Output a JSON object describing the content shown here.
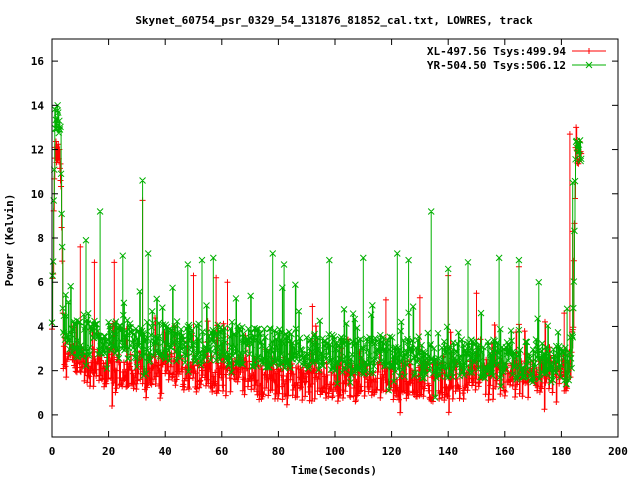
{
  "chart_data": {
    "type": "scatter",
    "title": "Skynet_60754_psr_0329_54_131876_81852_cal.txt, LOWRES, track",
    "xlabel": "Time(Seconds)",
    "ylabel": "Power (Kelvin)",
    "xlim": [
      0,
      200
    ],
    "ylim": [
      -1,
      17
    ],
    "xticks": [
      0,
      20,
      40,
      60,
      80,
      100,
      120,
      140,
      160,
      180,
      200
    ],
    "yticks": [
      0,
      2,
      4,
      6,
      8,
      10,
      12,
      14,
      16
    ],
    "grid": false,
    "legend_position": "top-right",
    "series": [
      {
        "name": "XL-497.56 Tsys:499.94",
        "color": "#ff0000",
        "marker": "plus",
        "profile": [
          [
            0,
            3.6
          ],
          [
            1,
            12.0
          ],
          [
            2,
            11.8
          ],
          [
            3,
            11.5
          ],
          [
            4,
            2.8
          ],
          [
            5,
            2.6
          ],
          [
            8,
            2.3
          ],
          [
            15,
            2.1
          ],
          [
            25,
            2.1
          ],
          [
            35,
            2.0
          ],
          [
            45,
            2.0
          ],
          [
            55,
            1.9
          ],
          [
            65,
            1.9
          ],
          [
            75,
            1.6
          ],
          [
            85,
            1.5
          ],
          [
            95,
            1.5
          ],
          [
            105,
            1.5
          ],
          [
            115,
            1.5
          ],
          [
            125,
            1.6
          ],
          [
            135,
            1.5
          ],
          [
            145,
            1.6
          ],
          [
            155,
            1.6
          ],
          [
            165,
            1.6
          ],
          [
            175,
            1.7
          ],
          [
            180,
            1.9
          ],
          [
            182,
            2.0
          ],
          [
            184,
            3.0
          ],
          [
            185,
            11.5
          ],
          [
            186,
            11.6
          ],
          [
            187,
            11.6
          ]
        ],
        "peaks": [
          [
            3,
            10.6
          ],
          [
            10,
            7.6
          ],
          [
            15,
            6.9
          ],
          [
            22,
            6.9
          ],
          [
            32,
            9.7
          ],
          [
            50,
            6.3
          ],
          [
            58,
            6.2
          ],
          [
            62,
            6.0
          ],
          [
            92,
            4.9
          ],
          [
            118,
            5.2
          ],
          [
            130,
            5.3
          ],
          [
            140,
            6.3
          ],
          [
            150,
            5.5
          ],
          [
            165,
            6.7
          ],
          [
            181,
            4.6
          ],
          [
            183,
            12.7
          ],
          [
            184,
            8.3
          ]
        ]
      },
      {
        "name": "YR-504.50 Tsys:506.12",
        "color": "#00b000",
        "marker": "x",
        "profile": [
          [
            0,
            3.9
          ],
          [
            1,
            13.4
          ],
          [
            2,
            13.2
          ],
          [
            3,
            13.0
          ],
          [
            4,
            3.7
          ],
          [
            6,
            3.5
          ],
          [
            15,
            3.4
          ],
          [
            25,
            3.3
          ],
          [
            35,
            3.3
          ],
          [
            45,
            3.2
          ],
          [
            55,
            3.3
          ],
          [
            65,
            3.2
          ],
          [
            75,
            3.0
          ],
          [
            85,
            3.0
          ],
          [
            95,
            2.8
          ],
          [
            105,
            2.7
          ],
          [
            115,
            2.7
          ],
          [
            125,
            2.6
          ],
          [
            135,
            2.5
          ],
          [
            145,
            2.6
          ],
          [
            155,
            2.5
          ],
          [
            165,
            2.5
          ],
          [
            175,
            2.4
          ],
          [
            180,
            2.3
          ],
          [
            182,
            2.1
          ],
          [
            184,
            3.0
          ],
          [
            185,
            11.8
          ],
          [
            186,
            12.0
          ],
          [
            187,
            11.8
          ]
        ],
        "peaks": [
          [
            2,
            14.0
          ],
          [
            12,
            7.9
          ],
          [
            17,
            9.2
          ],
          [
            25,
            7.2
          ],
          [
            32,
            10.6
          ],
          [
            34,
            7.3
          ],
          [
            48,
            6.8
          ],
          [
            53,
            7.0
          ],
          [
            57,
            7.1
          ],
          [
            78,
            7.3
          ],
          [
            82,
            6.8
          ],
          [
            98,
            7.0
          ],
          [
            110,
            7.1
          ],
          [
            122,
            7.3
          ],
          [
            126,
            7.0
          ],
          [
            134,
            9.2
          ],
          [
            140,
            6.6
          ],
          [
            147,
            6.9
          ],
          [
            158,
            7.1
          ],
          [
            165,
            7.0
          ],
          [
            172,
            6.0
          ],
          [
            182,
            4.8
          ],
          [
            184,
            10.5
          ]
        ]
      }
    ]
  }
}
